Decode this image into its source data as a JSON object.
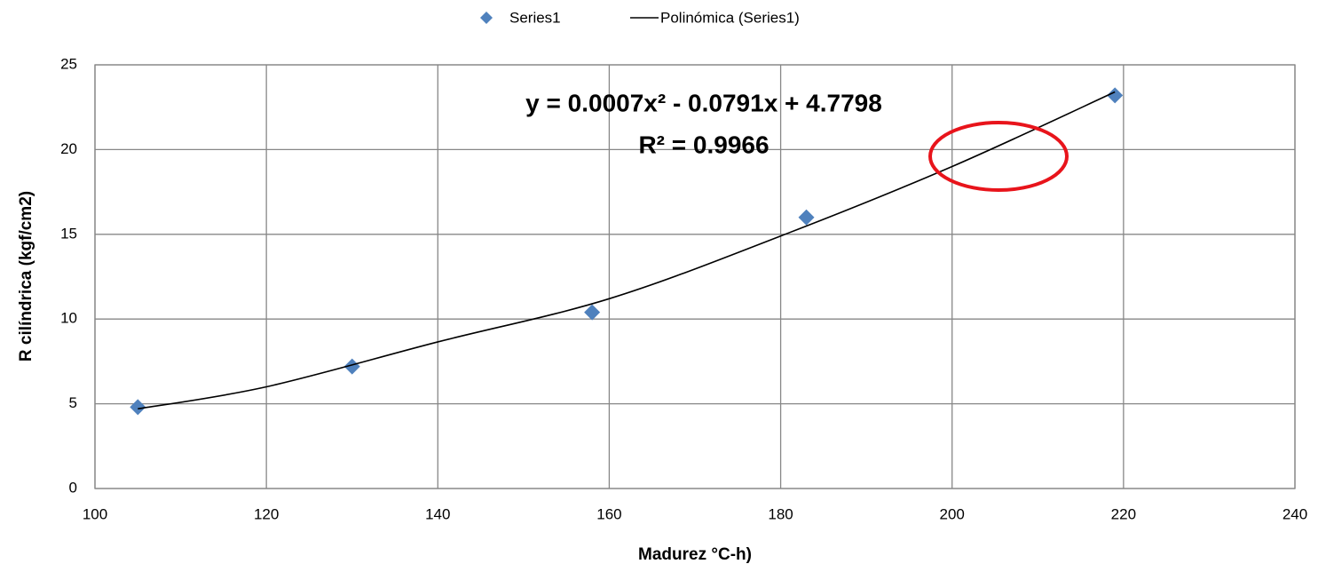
{
  "chart_data": {
    "type": "scatter",
    "x_label": "Madurez °C-h)",
    "y_label": "R cilíndrica (kgf/cm2)",
    "annotations": [
      "y = 0.0007x² - 0.0791x + 4.7798",
      "R² = 0.9966"
    ],
    "series": [
      {
        "name": "Series1",
        "type": "scatter",
        "marker": "diamond",
        "color": "#4f81bd",
        "x": [
          105,
          130,
          158,
          183,
          219
        ],
        "values": [
          4.8,
          7.2,
          10.4,
          16.0,
          23.2
        ]
      },
      {
        "name": "Polinómica (Series1)",
        "type": "line",
        "color": "#000000",
        "x": [
          105,
          120,
          140,
          160,
          180,
          200,
          219
        ],
        "values": [
          4.7,
          6.0,
          8.65,
          11.2,
          14.9,
          19.0,
          23.4
        ]
      }
    ],
    "xlim": [
      100,
      240
    ],
    "xticks": [
      100,
      120,
      140,
      160,
      180,
      200,
      220,
      240
    ],
    "ylim": [
      0,
      25
    ],
    "yticks": [
      0,
      5,
      10,
      15,
      20,
      25
    ],
    "grid": true,
    "legend": "top"
  }
}
